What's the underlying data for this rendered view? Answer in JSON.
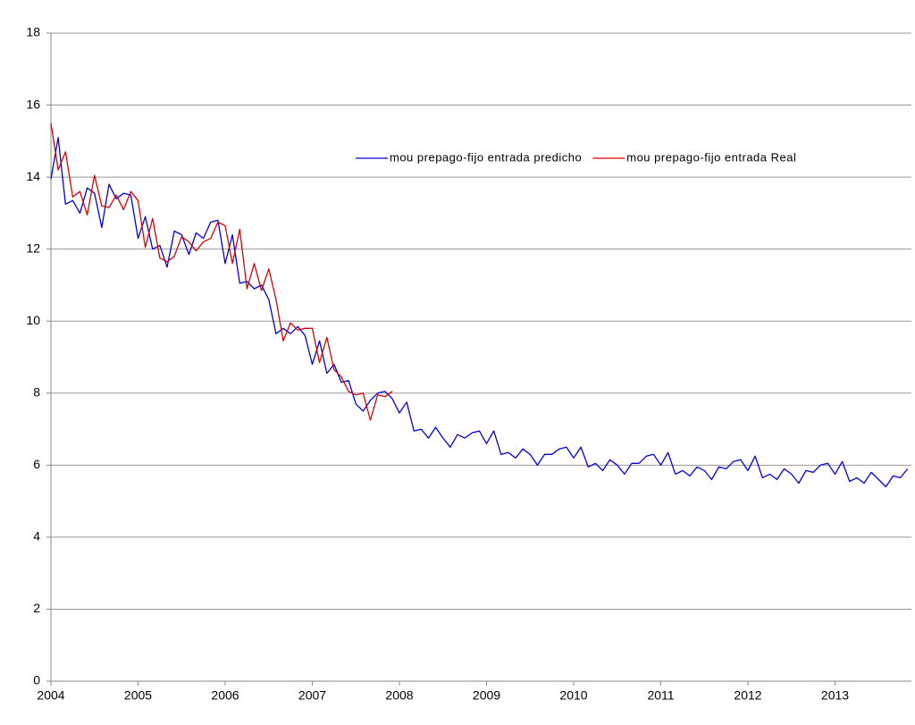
{
  "chart_data": {
    "type": "line",
    "categories": [
      "2004",
      null,
      null,
      null,
      null,
      null,
      null,
      null,
      null,
      null,
      null,
      null,
      "2005",
      null,
      null,
      null,
      null,
      null,
      null,
      null,
      null,
      null,
      null,
      null,
      "2006",
      null,
      null,
      null,
      null,
      null,
      null,
      null,
      null,
      null,
      null,
      null,
      "2007",
      null,
      null,
      null,
      null,
      null,
      null,
      null,
      null,
      null,
      null,
      null,
      "2008",
      null,
      null,
      null,
      null,
      null,
      null,
      null,
      null,
      null,
      null,
      null,
      "2009",
      null,
      null,
      null,
      null,
      null,
      null,
      null,
      null,
      null,
      null,
      null,
      "2010",
      null,
      null,
      null,
      null,
      null,
      null,
      null,
      null,
      null,
      null,
      null,
      "2011",
      null,
      null,
      null,
      null,
      null,
      null,
      null,
      null,
      null,
      null,
      null,
      "2012",
      null,
      null,
      null,
      null,
      null,
      null,
      null,
      null,
      null,
      null,
      null,
      "2013",
      null,
      null,
      null,
      null,
      null,
      null,
      null,
      null,
      null,
      null
    ],
    "series": [
      {
        "name": "mou prepago-fijo entrada predicho",
        "color": "#0000dd",
        "values": [
          13.95,
          15.1,
          13.25,
          13.35,
          13.0,
          13.7,
          13.55,
          12.6,
          13.8,
          13.4,
          13.55,
          13.5,
          12.3,
          12.9,
          12.0,
          12.1,
          11.5,
          12.5,
          12.4,
          11.85,
          12.45,
          12.3,
          12.75,
          12.8,
          11.6,
          12.4,
          11.05,
          11.1,
          10.9,
          11.0,
          10.6,
          9.65,
          9.8,
          9.65,
          9.85,
          9.6,
          8.8,
          9.45,
          8.55,
          8.8,
          8.3,
          8.35,
          7.7,
          7.5,
          7.8,
          8.0,
          8.05,
          7.85,
          7.45,
          7.75,
          6.95,
          7.0,
          6.75,
          7.05,
          6.75,
          6.5,
          6.85,
          6.75,
          6.9,
          6.95,
          6.6,
          6.95,
          6.3,
          6.35,
          6.2,
          6.45,
          6.3,
          6.0,
          6.3,
          6.3,
          6.45,
          6.5,
          6.2,
          6.5,
          5.95,
          6.05,
          5.85,
          6.15,
          6.0,
          5.75,
          6.05,
          6.05,
          6.25,
          6.3,
          6.0,
          6.35,
          5.75,
          5.85,
          5.7,
          5.95,
          5.85,
          5.6,
          5.95,
          5.9,
          6.1,
          6.15,
          5.85,
          6.25,
          5.65,
          5.75,
          5.6,
          5.9,
          5.75,
          5.5,
          5.85,
          5.8,
          6.0,
          6.05,
          5.75,
          6.1,
          5.55,
          5.65,
          5.5,
          5.8,
          5.6,
          5.4,
          5.7,
          5.65,
          5.9
        ]
      },
      {
        "name": "mou prepago-fijo entrada Real",
        "color": "#dd0000",
        "values": [
          15.5,
          14.2,
          14.7,
          13.45,
          13.6,
          12.95,
          14.05,
          13.2,
          13.15,
          13.5,
          13.1,
          13.6,
          13.35,
          12.05,
          12.85,
          11.75,
          11.65,
          11.8,
          12.35,
          12.2,
          11.95,
          12.2,
          12.3,
          12.75,
          12.65,
          11.6,
          12.55,
          10.9,
          11.6,
          10.85,
          11.45,
          10.6,
          9.45,
          9.95,
          9.75,
          9.8,
          9.8,
          8.85,
          9.55,
          8.65,
          8.45,
          8.05,
          7.95,
          8.0,
          7.25,
          7.95,
          7.9,
          8.05,
          null,
          null,
          null,
          null,
          null,
          null,
          null,
          null,
          null,
          null,
          null,
          null,
          null,
          null,
          null,
          null,
          null,
          null,
          null,
          null,
          null,
          null,
          null,
          null,
          null,
          null,
          null,
          null,
          null,
          null,
          null,
          null,
          null,
          null,
          null,
          null,
          null,
          null,
          null,
          null,
          null,
          null,
          null,
          null,
          null,
          null,
          null,
          null,
          null,
          null,
          null,
          null,
          null,
          null,
          null,
          null,
          null,
          null,
          null,
          null,
          null,
          null,
          null,
          null,
          null,
          null,
          null,
          null,
          null,
          null,
          null
        ]
      }
    ],
    "ylim": [
      0,
      18
    ],
    "yticks": [
      0,
      2,
      4,
      6,
      8,
      10,
      12,
      14,
      16,
      18
    ],
    "grid": true,
    "legend_position": "upper right"
  }
}
